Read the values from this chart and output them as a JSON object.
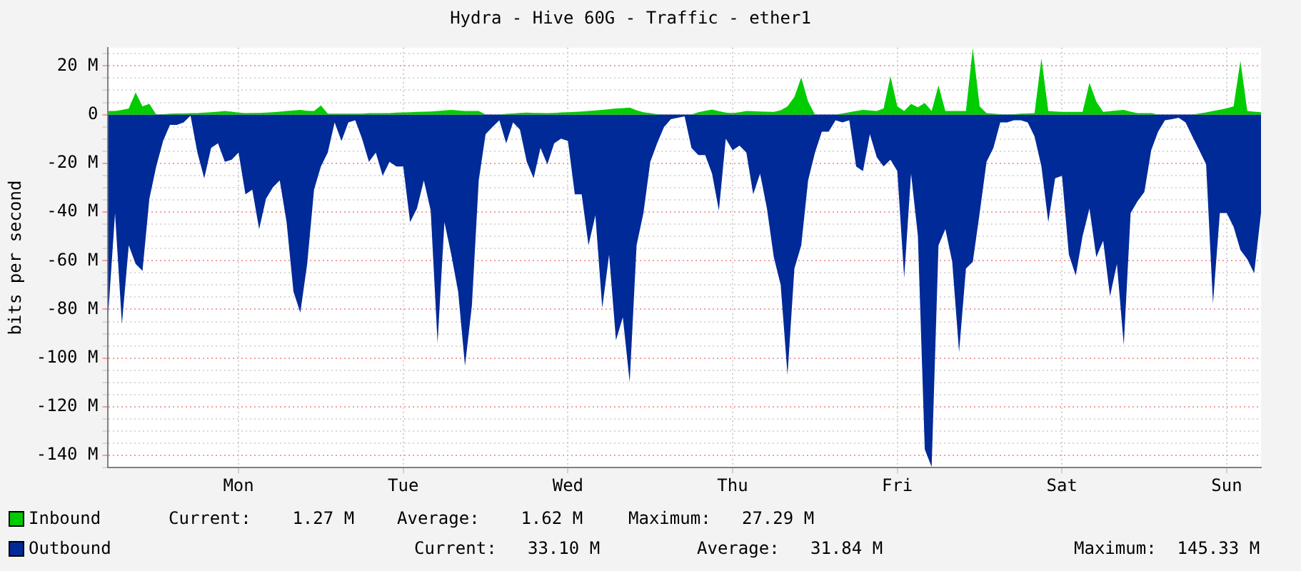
{
  "chart_data": {
    "type": "area",
    "title": "Hydra - Hive 60G - Traffic - ether1",
    "ylabel": "bits per second",
    "categories": [
      null,
      null,
      null,
      null,
      null,
      null,
      null,
      null,
      null,
      null,
      null,
      null,
      null,
      null,
      null,
      null,
      null,
      null,
      null,
      "Mon",
      null,
      null,
      null,
      null,
      null,
      null,
      null,
      null,
      null,
      null,
      null,
      null,
      null,
      null,
      null,
      null,
      null,
      null,
      null,
      null,
      null,
      null,
      null,
      "Tue",
      null,
      null,
      null,
      null,
      null,
      null,
      null,
      null,
      null,
      null,
      null,
      null,
      null,
      null,
      null,
      null,
      null,
      null,
      null,
      null,
      null,
      null,
      null,
      "Wed",
      null,
      null,
      null,
      null,
      null,
      null,
      null,
      null,
      null,
      null,
      null,
      null,
      null,
      null,
      null,
      null,
      null,
      null,
      null,
      null,
      null,
      null,
      null,
      "Thu",
      null,
      null,
      null,
      null,
      null,
      null,
      null,
      null,
      null,
      null,
      null,
      null,
      null,
      null,
      null,
      null,
      null,
      null,
      null,
      null,
      null,
      null,
      null,
      "Fri",
      null,
      null,
      null,
      null,
      null,
      null,
      null,
      null,
      null,
      null,
      null,
      null,
      null,
      null,
      null,
      null,
      null,
      null,
      null,
      null,
      null,
      null,
      null,
      "Sat",
      null,
      null,
      null,
      null,
      null,
      null,
      null,
      null,
      null,
      null,
      null,
      null,
      null,
      null,
      null,
      null,
      null,
      null,
      null,
      null,
      null,
      null,
      null,
      "Sun",
      null,
      null,
      null,
      null,
      null
    ],
    "ylim": [
      -145,
      27.5
    ],
    "yticks": [
      {
        "value": -145,
        "label": null
      },
      {
        "value": -140,
        "label": "-140 M"
      },
      {
        "value": -135,
        "label": null
      },
      {
        "value": -130,
        "label": null
      },
      {
        "value": -125,
        "label": null
      },
      {
        "value": -120,
        "label": "-120 M"
      },
      {
        "value": -115,
        "label": null
      },
      {
        "value": -110,
        "label": null
      },
      {
        "value": -105,
        "label": null
      },
      {
        "value": -100,
        "label": "-100 M"
      },
      {
        "value": -95,
        "label": null
      },
      {
        "value": -90,
        "label": null
      },
      {
        "value": -85,
        "label": null
      },
      {
        "value": -80,
        "label": "-80 M"
      },
      {
        "value": -75,
        "label": null
      },
      {
        "value": -70,
        "label": null
      },
      {
        "value": -65,
        "label": null
      },
      {
        "value": -60,
        "label": "-60 M"
      },
      {
        "value": -55,
        "label": null
      },
      {
        "value": -50,
        "label": null
      },
      {
        "value": -45,
        "label": null
      },
      {
        "value": -40,
        "label": "-40 M"
      },
      {
        "value": -35,
        "label": null
      },
      {
        "value": -30,
        "label": null
      },
      {
        "value": -25,
        "label": null
      },
      {
        "value": -20,
        "label": "-20 M"
      },
      {
        "value": -15,
        "label": null
      },
      {
        "value": -10,
        "label": null
      },
      {
        "value": -5,
        "label": null
      },
      {
        "value": 0,
        "label": "0"
      },
      {
        "value": 5,
        "label": null
      },
      {
        "value": 10,
        "label": null
      },
      {
        "value": 15,
        "label": null
      },
      {
        "value": 20,
        "label": "20 M"
      },
      {
        "value": 25,
        "label": null
      }
    ],
    "grid": true,
    "legend": "bottom left",
    "series": [
      {
        "name": "Inbound",
        "color": "#00cc00",
        "values": [
          1.5,
          1.5,
          1.9,
          2.5,
          9.1,
          3.4,
          4.4,
          0,
          0.2,
          0.4,
          0.5,
          0.5,
          0.6,
          0.6,
          0.8,
          1,
          1.2,
          1.5,
          1.2,
          0.8,
          0.6,
          0.7,
          0.7,
          0.8,
          1,
          1.2,
          1.5,
          1.7,
          1.9,
          1.6,
          1.5,
          3.8,
          0.4,
          0.4,
          0.4,
          0.4,
          0.4,
          0.4,
          0.6,
          0.6,
          0.6,
          0.6,
          0.8,
          0.9,
          1,
          1.1,
          1.2,
          1.3,
          1.5,
          1.7,
          1.9,
          1.7,
          1.5,
          1.5,
          1.5,
          0,
          0,
          0,
          0.3,
          0.5,
          0.7,
          0.8,
          0.7,
          0.7,
          0.6,
          0.7,
          0.9,
          1,
          1.1,
          1.3,
          1.5,
          1.7,
          1.9,
          2.2,
          2.5,
          2.7,
          2.9,
          1.8,
          1,
          0.6,
          0.2,
          0,
          0,
          0,
          0,
          0,
          1,
          1.6,
          2.1,
          1.4,
          0.8,
          0.6,
          1,
          1.5,
          1.4,
          1.3,
          1.2,
          1.1,
          1.8,
          3.4,
          7.3,
          15.3,
          5.4,
          0,
          0,
          0,
          0,
          0.5,
          1,
          1.5,
          1.9,
          1.7,
          1.5,
          2.5,
          15.8,
          3.4,
          1.5,
          4.4,
          3,
          4.8,
          1.5,
          12,
          1.5,
          1.5,
          1.5,
          1.5,
          27.3,
          3.4,
          0.6,
          0.4,
          0.2,
          0,
          0.2,
          0.4,
          0.5,
          0.6,
          23.1,
          1.5,
          1.3,
          1.1,
          1.1,
          1.1,
          1.1,
          13.1,
          5.4,
          1.1,
          1.4,
          1.7,
          1.9,
          1.2,
          0.6,
          0.6,
          0.6,
          0,
          0,
          0,
          0,
          0,
          0,
          0.5,
          0.9,
          1.5,
          2,
          2.6,
          3.4,
          22.1,
          1.5,
          1.2,
          1
        ]
      },
      {
        "name": "Outbound",
        "color": "#002a97",
        "values": [
          -82.3,
          -40.4,
          -86.1,
          -53.7,
          -61.3,
          -64.2,
          -34.6,
          -21.3,
          -10.8,
          -4.2,
          -4.2,
          -3.2,
          -0.4,
          -15.6,
          -26.1,
          -13.7,
          -11.8,
          -19.4,
          -18.5,
          -15.6,
          -32.7,
          -30.8,
          -47,
          -34.6,
          -29.9,
          -27,
          -44.2,
          -72.7,
          -81.3,
          -61.3,
          -30.8,
          -21.3,
          -15.6,
          -3.2,
          -10.8,
          -3.2,
          -2.3,
          -9.9,
          -19.4,
          -15.6,
          -25.1,
          -19.4,
          -21.3,
          -21.3,
          -44.2,
          -38.5,
          -27,
          -39.4,
          -93.7,
          -44.2,
          -57.5,
          -72.7,
          -103.2,
          -78.5,
          -27,
          -8,
          -5.1,
          -2.3,
          -11.8,
          -3.2,
          -6.1,
          -19.4,
          -26.1,
          -13.7,
          -20.4,
          -11.8,
          -9.9,
          -10.8,
          -32.7,
          -32.7,
          -53.7,
          -41.3,
          -79.4,
          -57.5,
          -92.7,
          -83.2,
          -109.9,
          -53.7,
          -40.4,
          -19.4,
          -11.8,
          -5.1,
          -1.9,
          -1.3,
          -0.7,
          -13.7,
          -16.6,
          -16.6,
          -24.2,
          -39.4,
          -9.9,
          -14.6,
          -12.7,
          -15.6,
          -32.7,
          -24.2,
          -38.5,
          -58.5,
          -69.9,
          -107,
          -63.2,
          -53.7,
          -27,
          -15.6,
          -7,
          -7,
          -2.3,
          -3.2,
          -2.3,
          -21.3,
          -23.2,
          -8,
          -17.5,
          -21.3,
          -18.5,
          -23.2,
          -67,
          -24.2,
          -49.9,
          -137.5,
          -144.7,
          -53.7,
          -47,
          -60.4,
          -97.5,
          -63.2,
          -60.4,
          -40.4,
          -19.4,
          -13.7,
          -3.2,
          -3.2,
          -2.3,
          -2.3,
          -3.2,
          -9,
          -21.3,
          -44.2,
          -26.1,
          -25.1,
          -57.5,
          -66.1,
          -49.9,
          -38.5,
          -58.5,
          -51.8,
          -74.6,
          -61.3,
          -94.6,
          -40.4,
          -35.6,
          -31.8,
          -14.6,
          -7,
          -2.3,
          -1.9,
          -1.3,
          -3.2,
          -9,
          -14.6,
          -20.4,
          -77.5,
          -40.4,
          -40.4,
          -46.1,
          -55.6,
          -59.4,
          -65.1,
          -40.4
        ]
      }
    ],
    "annotations": [
      "Current:    1.27 M",
      "Average:    1.62 M",
      "Maximum:   27.29 M",
      "Current:   33.10 M",
      "Average:   31.84 M",
      "Maximum:  145.33 M"
    ]
  }
}
